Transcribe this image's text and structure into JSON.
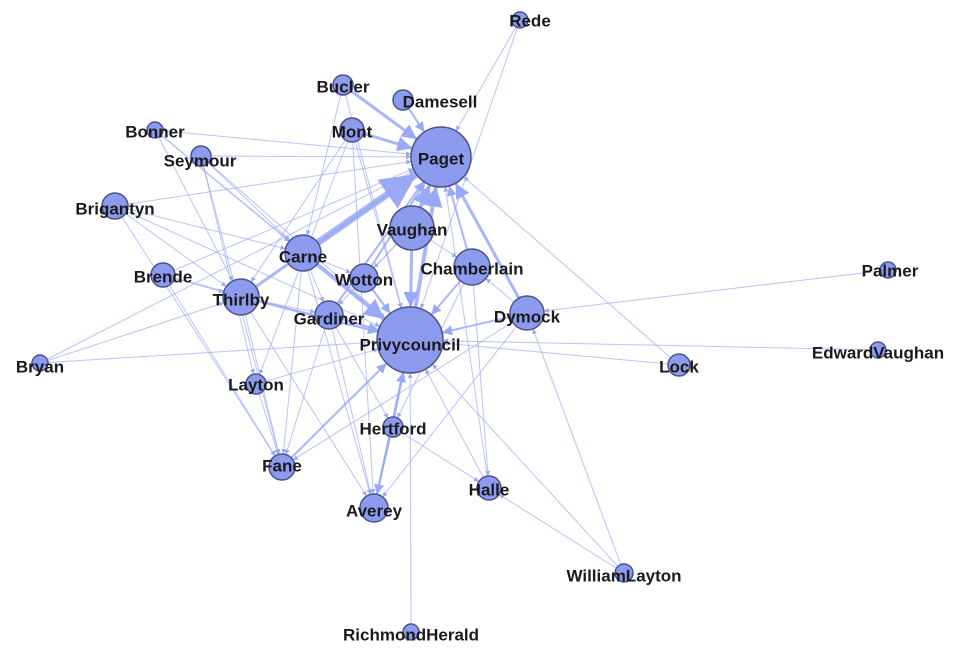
{
  "nodes": [
    {
      "label": "Rede"
    },
    {
      "label": "Bucler"
    },
    {
      "label": "Damesell"
    },
    {
      "label": "Mont"
    },
    {
      "label": "Paget"
    },
    {
      "label": "Bonner"
    },
    {
      "label": "Seymour"
    },
    {
      "label": "Brigantyn"
    },
    {
      "label": "Vaughan"
    },
    {
      "label": "Carne"
    },
    {
      "label": "Chamberlain"
    },
    {
      "label": "Wotton"
    },
    {
      "label": "Brende"
    },
    {
      "label": "Thirlby"
    },
    {
      "label": "Palmer"
    },
    {
      "label": "Dymock"
    },
    {
      "label": "Gardiner"
    },
    {
      "label": "Privycouncil"
    },
    {
      "label": "Bryan"
    },
    {
      "label": "EdwardVaughan"
    },
    {
      "label": "Lock"
    },
    {
      "label": "Layton"
    },
    {
      "label": "Hertford"
    },
    {
      "label": "Fane"
    },
    {
      "label": "Halle"
    },
    {
      "label": "Averey"
    },
    {
      "label": "WilliamLayton"
    },
    {
      "label": "RichmondHerald"
    }
  ]
}
